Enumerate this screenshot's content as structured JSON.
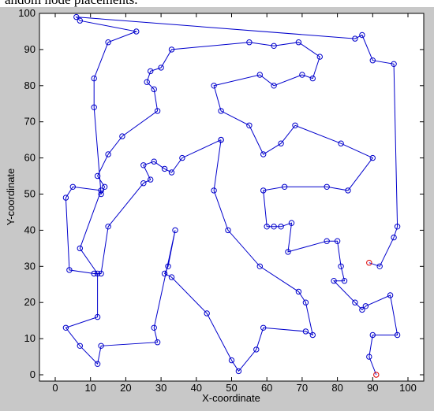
{
  "caption": "andom node placements.",
  "chart_data": {
    "type": "line",
    "xlabel": "X-coordinate",
    "ylabel": "Y-coordinate",
    "xlim": [
      0,
      100
    ],
    "ylim": [
      0,
      100
    ],
    "xticks": [
      0,
      10,
      20,
      30,
      40,
      50,
      60,
      70,
      80,
      90,
      100
    ],
    "yticks": [
      0,
      10,
      20,
      30,
      40,
      50,
      60,
      70,
      80,
      90,
      100
    ],
    "grid": false,
    "line_color": "#0000cc",
    "marker_color": "#0000cc",
    "highlight_color": "#dd0000",
    "series": [
      {
        "values": [
          [
            91,
            0
          ],
          [
            89,
            5
          ],
          [
            90,
            11
          ],
          [
            97,
            11
          ],
          [
            95,
            22
          ],
          [
            88,
            19
          ],
          [
            87,
            18
          ],
          [
            85,
            20
          ],
          [
            79,
            26
          ],
          [
            82,
            26
          ],
          [
            81,
            30
          ],
          [
            80,
            37
          ],
          [
            77,
            37
          ],
          [
            66,
            34
          ],
          [
            67,
            42
          ],
          [
            64,
            41
          ],
          [
            62,
            41
          ],
          [
            60,
            41
          ],
          [
            59,
            51
          ],
          [
            65,
            52
          ],
          [
            77,
            52
          ],
          [
            83,
            51
          ],
          [
            90,
            60
          ],
          [
            81,
            64
          ],
          [
            68,
            69
          ],
          [
            64,
            64
          ],
          [
            59,
            61
          ],
          [
            55,
            69
          ],
          [
            47,
            73
          ],
          [
            45,
            80
          ],
          [
            58,
            83
          ],
          [
            62,
            80
          ],
          [
            70,
            83
          ],
          [
            73,
            82
          ],
          [
            75,
            88
          ],
          [
            69,
            92
          ],
          [
            62,
            91
          ],
          [
            55,
            92
          ],
          [
            33,
            90
          ],
          [
            30,
            85
          ],
          [
            27,
            84
          ],
          [
            26,
            81
          ],
          [
            28,
            79
          ],
          [
            29,
            73
          ],
          [
            19,
            66
          ],
          [
            15,
            61
          ],
          [
            12,
            55
          ],
          [
            14,
            52
          ],
          [
            13,
            50
          ],
          [
            11,
            74
          ],
          [
            11,
            82
          ],
          [
            15,
            92
          ],
          [
            23,
            95
          ],
          [
            7,
            98
          ],
          [
            6,
            99
          ],
          [
            85,
            93
          ],
          [
            87,
            94
          ],
          [
            90,
            87
          ],
          [
            96,
            86
          ],
          [
            97,
            41
          ],
          [
            96,
            38
          ],
          [
            92,
            30
          ],
          [
            89,
            31
          ]
        ],
        "highlight": true
      },
      {
        "values": [
          [
            47,
            65
          ],
          [
            36,
            60
          ],
          [
            33,
            56
          ],
          [
            31,
            57
          ],
          [
            28,
            59
          ],
          [
            25,
            58
          ],
          [
            27,
            54
          ],
          [
            25,
            53
          ],
          [
            15,
            41
          ],
          [
            13,
            28
          ],
          [
            11,
            28
          ],
          [
            4,
            29
          ],
          [
            3,
            49
          ],
          [
            5,
            52
          ],
          [
            13,
            51
          ],
          [
            7,
            35
          ],
          [
            12,
            28
          ],
          [
            12,
            16
          ],
          [
            3,
            13
          ],
          [
            7,
            8
          ],
          [
            12,
            3
          ],
          [
            13,
            8
          ],
          [
            29,
            9
          ],
          [
            28,
            13
          ],
          [
            34,
            40
          ],
          [
            32,
            30
          ],
          [
            31,
            28
          ],
          [
            33,
            27
          ],
          [
            43,
            17
          ],
          [
            50,
            4
          ],
          [
            52,
            1
          ],
          [
            57,
            7
          ],
          [
            59,
            13
          ],
          [
            71,
            12
          ],
          [
            73,
            11
          ],
          [
            71,
            20
          ],
          [
            69,
            23
          ],
          [
            58,
            30
          ],
          [
            49,
            40
          ],
          [
            45,
            51
          ],
          [
            47,
            65
          ]
        ]
      }
    ]
  }
}
